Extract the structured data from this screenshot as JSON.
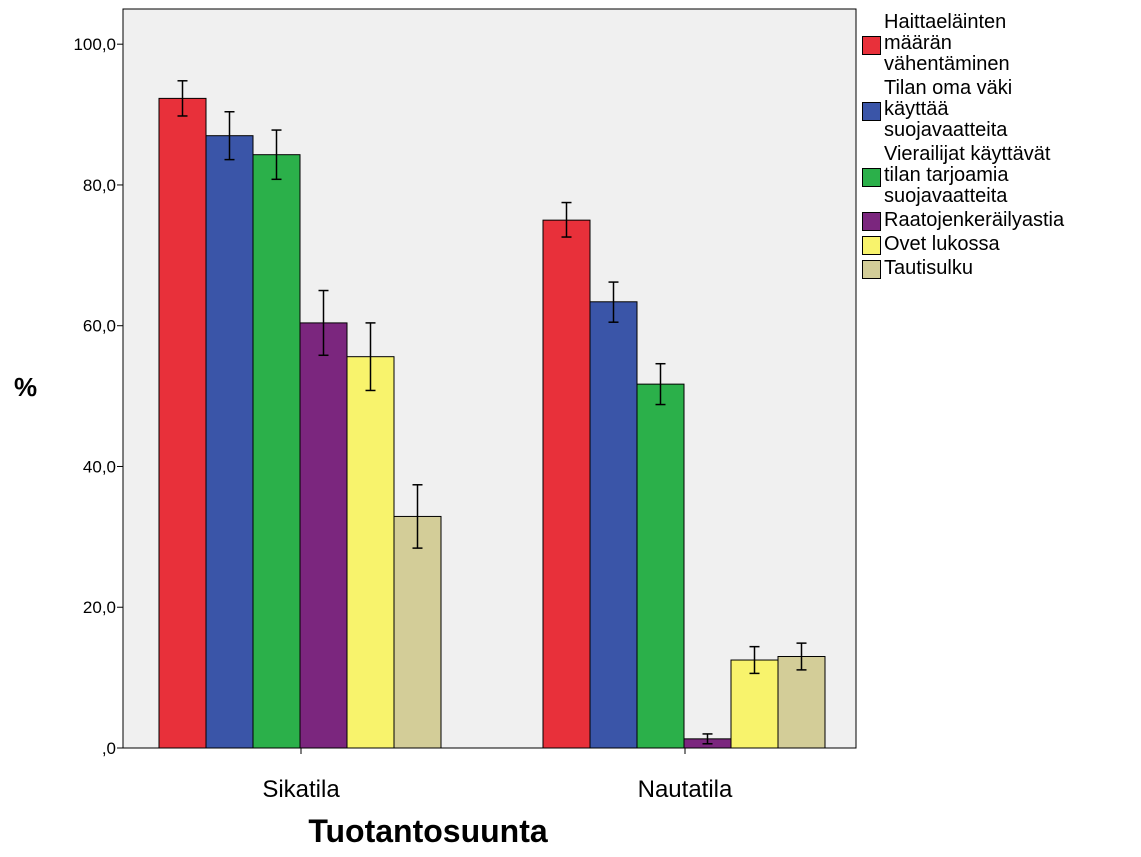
{
  "chart_data": {
    "type": "bar",
    "xlabel": "Tuotantosuunta",
    "ylabel": "%",
    "ylim": [
      0,
      105
    ],
    "yticks": [
      0,
      20,
      40,
      60,
      80,
      100
    ],
    "ytick_labels": [
      ",0",
      "20,0",
      "40,0",
      "60,0",
      "80,0",
      "100,0"
    ],
    "categories": [
      "Sikatila",
      "Nautatila"
    ],
    "grid": false,
    "legend_position": "right",
    "series": [
      {
        "name": "Haittaeläinten määrän vähentäminen",
        "color": "#e8303a",
        "values": [
          92.3,
          75.0
        ],
        "errors": [
          [
            89.8,
            94.8
          ],
          [
            72.6,
            77.5
          ]
        ]
      },
      {
        "name": "Tilan oma väki käyttää suojavaatteita",
        "color": "#3a55a8",
        "values": [
          87.0,
          63.4
        ],
        "errors": [
          [
            83.6,
            90.4
          ],
          [
            60.5,
            66.2
          ]
        ]
      },
      {
        "name": "Vierailijat käyttävät tilan tarjoamia suojavaatteita",
        "color": "#2bb04a",
        "values": [
          84.3,
          51.7
        ],
        "errors": [
          [
            80.8,
            87.8
          ],
          [
            48.8,
            54.6
          ]
        ]
      },
      {
        "name": "Raatojenkeräilyastia",
        "color": "#7b267e",
        "values": [
          60.4,
          1.3
        ],
        "errors": [
          [
            55.8,
            65.0
          ],
          [
            0.6,
            2.0
          ]
        ]
      },
      {
        "name": "Ovet lukossa",
        "color": "#f8f36c",
        "values": [
          55.6,
          12.5
        ],
        "errors": [
          [
            50.8,
            60.4
          ],
          [
            10.6,
            14.4
          ]
        ]
      },
      {
        "name": "Tautisulku",
        "color": "#d3cd98",
        "values": [
          32.9,
          13.0
        ],
        "errors": [
          [
            28.4,
            37.4
          ],
          [
            11.1,
            14.9
          ]
        ]
      }
    ]
  }
}
